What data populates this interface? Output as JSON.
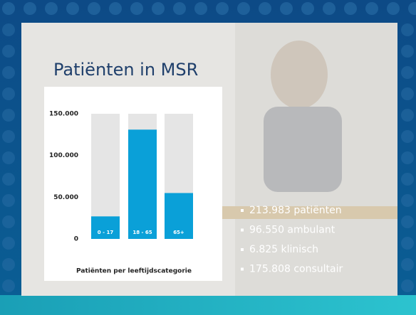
{
  "chart_data": {
    "type": "bar",
    "title": "Patiënten in MSR",
    "x_label": "Patiënten per leeftijdscategorie",
    "categories": [
      "0 - 17",
      "18 - 65",
      "65+"
    ],
    "values": [
      27000,
      131000,
      55000
    ],
    "color": "#0aa0d8",
    "track_color": "#e5e5e5",
    "ylim": [
      0,
      150000
    ],
    "yticks": [
      0,
      {
        "value": 50000,
        "label": "50.000"
      },
      {
        "value": 100000,
        "label": "100.000"
      },
      {
        "value": 150000,
        "label": "150.000"
      }
    ]
  },
  "bullets": [
    "213.983 patiënten",
    "96.550 ambulant",
    "6.825 klinisch",
    "175.808 consultair"
  ]
}
